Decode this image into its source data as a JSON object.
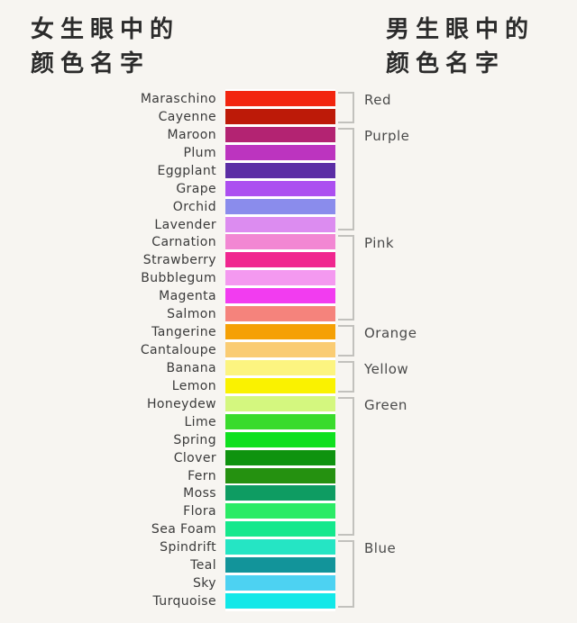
{
  "page": {
    "background": "#F7F5F1",
    "text_color": "#3A3A3A",
    "bracket_color": "#C2C1BD",
    "swatch_gap_color": "#FFFFFF"
  },
  "titles": {
    "left_line1": "女生眼中的",
    "left_line2": "颜色名字",
    "right_line1": "男生眼中的",
    "right_line2": "颜色名字"
  },
  "chart_data": {
    "type": "table",
    "title": "女生眼中的颜色名字 vs 男生眼中的颜色名字",
    "legend_position": "right",
    "rows": [
      {
        "name": "Maraschino",
        "hex": "#F2250F"
      },
      {
        "name": "Cayenne",
        "hex": "#BD1A08"
      },
      {
        "name": "Maroon",
        "hex": "#B32372"
      },
      {
        "name": "Plum",
        "hex": "#BC34BF"
      },
      {
        "name": "Eggplant",
        "hex": "#5B2DA5"
      },
      {
        "name": "Grape",
        "hex": "#AC4FF0"
      },
      {
        "name": "Orchid",
        "hex": "#8A8CEC"
      },
      {
        "name": "Lavender",
        "hex": "#DC8CF0"
      },
      {
        "name": "Carnation",
        "hex": "#F287D3"
      },
      {
        "name": "Strawberry",
        "hex": "#F0268F"
      },
      {
        "name": "Bubblegum",
        "hex": "#F499F0"
      },
      {
        "name": "Magenta",
        "hex": "#F23CF0"
      },
      {
        "name": "Salmon",
        "hex": "#F5837C"
      },
      {
        "name": "Tangerine",
        "hex": "#F5A005"
      },
      {
        "name": "Cantaloupe",
        "hex": "#FACC73"
      },
      {
        "name": "Banana",
        "hex": "#FCF480"
      },
      {
        "name": "Lemon",
        "hex": "#FAF200"
      },
      {
        "name": "Honeydew",
        "hex": "#D4F77F"
      },
      {
        "name": "Lime",
        "hex": "#39DB2C"
      },
      {
        "name": "Spring",
        "hex": "#0FE01F"
      },
      {
        "name": "Clover",
        "hex": "#0F930F"
      },
      {
        "name": "Fern",
        "hex": "#259110"
      },
      {
        "name": "Moss",
        "hex": "#0E9C62"
      },
      {
        "name": "Flora",
        "hex": "#2BEB66"
      },
      {
        "name": "Sea Foam",
        "hex": "#15E88D"
      },
      {
        "name": "Spindrift",
        "hex": "#25E5C4"
      },
      {
        "name": "Teal",
        "hex": "#12949A"
      },
      {
        "name": "Sky",
        "hex": "#4DD2F2"
      },
      {
        "name": "Turquoise",
        "hex": "#12E8E8"
      }
    ],
    "groups": [
      {
        "label": "Red",
        "start": 0,
        "count": 2
      },
      {
        "label": "Purple",
        "start": 2,
        "count": 6
      },
      {
        "label": "Pink",
        "start": 8,
        "count": 5
      },
      {
        "label": "Orange",
        "start": 13,
        "count": 2
      },
      {
        "label": "Yellow",
        "start": 15,
        "count": 2
      },
      {
        "label": "Green",
        "start": 17,
        "count": 8
      },
      {
        "label": "Blue",
        "start": 25,
        "count": 4
      }
    ]
  }
}
